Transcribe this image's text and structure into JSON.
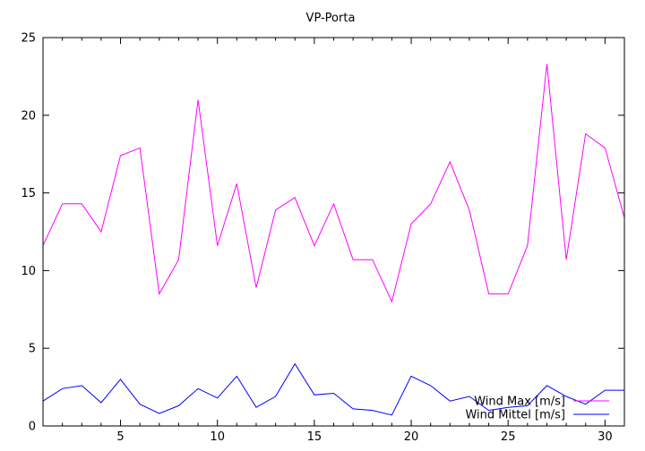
{
  "chart_data": {
    "type": "line",
    "title": "VP-Porta",
    "xlabel": "",
    "ylabel": "",
    "xlim": [
      1,
      31
    ],
    "ylim": [
      0,
      25
    ],
    "xticks": [
      5,
      10,
      15,
      20,
      25,
      30
    ],
    "yticks": [
      0,
      5,
      10,
      15,
      20,
      25
    ],
    "grid": false,
    "legend_position": "bottom-right",
    "x": [
      1,
      2,
      3,
      4,
      5,
      6,
      7,
      8,
      9,
      10,
      11,
      12,
      13,
      14,
      15,
      16,
      17,
      18,
      19,
      20,
      21,
      22,
      23,
      24,
      25,
      26,
      27,
      28,
      29,
      30,
      31
    ],
    "series": [
      {
        "name": "Wind Max [m/s]",
        "color": "#ff00ff",
        "values": [
          11.6,
          14.3,
          14.3,
          12.5,
          17.4,
          17.9,
          8.5,
          10.7,
          21.0,
          11.6,
          15.6,
          8.9,
          13.9,
          14.7,
          11.6,
          14.3,
          10.7,
          10.7,
          8.0,
          13.0,
          14.3,
          17.0,
          13.9,
          8.5,
          8.5,
          11.6,
          23.3,
          10.7,
          18.8,
          17.9,
          13.4
        ]
      },
      {
        "name": "Wind Mittel [m/s]",
        "color": "#0000ff",
        "values": [
          1.6,
          2.4,
          2.6,
          1.5,
          3.0,
          1.4,
          0.8,
          1.3,
          2.4,
          1.8,
          3.2,
          1.2,
          1.9,
          4.0,
          2.0,
          2.1,
          1.1,
          1.0,
          0.7,
          3.2,
          2.6,
          1.6,
          1.9,
          1.0,
          1.2,
          1.3,
          2.6,
          1.9,
          1.4,
          2.3,
          2.3
        ]
      }
    ]
  }
}
